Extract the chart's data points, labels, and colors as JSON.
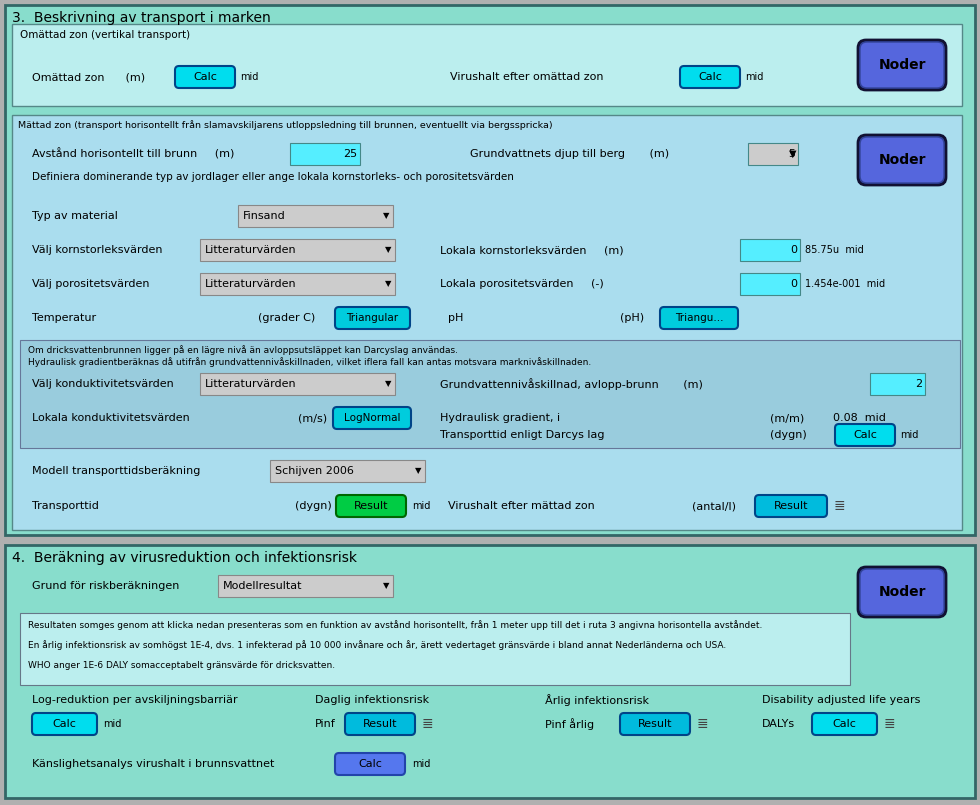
{
  "bg_outer": "#b0b0b0",
  "bg_sec3": "#88ddcc",
  "bg_sec4": "#88ddcc",
  "bg_omattad": "#bbeeee",
  "bg_mattad": "#aaddee",
  "bg_darcy": "#99ccdd",
  "bg_infobox": "#bbeeee",
  "dropdown_bg": "#cccccc",
  "input_cyan": "#55eeff",
  "btn_calc_cyan": "#00ddee",
  "btn_result_green": "#00cc44",
  "btn_result_cyan": "#00bbdd",
  "btn_lognormal": "#00ccdd",
  "btn_triangular": "#00ccdd",
  "btn_calc_blue": "#5577ee",
  "noder_outer": "#223388",
  "noder_inner": "#5566dd",
  "text_black": "#000000",
  "border_dark": "#336666",
  "border_mid": "#558888",
  "border_light": "#88aaaa",
  "sec3_title": "3.  Beskrivning av transport i marken",
  "sec4_title": "4.  Beräkning av virusreduktion och infektionsrisk",
  "omattad_sub": "Omättad zon (vertikal transport)",
  "mattad_sub": "Mättad zon (transport horisontellt från slamavskiljarens utloppsledning till brunnen, eventuellt via bergsspricka)",
  "darcy_info1": "Om dricksvattenbrunnen ligger på en lägre nivå än avloppsutsläppet kan Darcyslag användas.",
  "darcy_info2": "Hydraulisk gradientberäknas då utifrån grundvattennivåskillnaden, vilket iflera fall kan antas motsvara marknivåskillnaden.",
  "info1": "Resultaten somges genom att klicka nedan presenteras som en funktion av avstånd horisontellt, från 1 meter upp till det i ruta 3 angivna horisontella avståndet.",
  "info2": "En årlig infektionsrisk av somhögst 1E-4, dvs. 1 infekterad på 10 000 invånare och år, ärett vedertaget gränsvärde i bland annat Nederländerna och USA.",
  "info3": "WHO anger 1E-6 DALY somacceptabelt gränsvärde för dricksvatten."
}
